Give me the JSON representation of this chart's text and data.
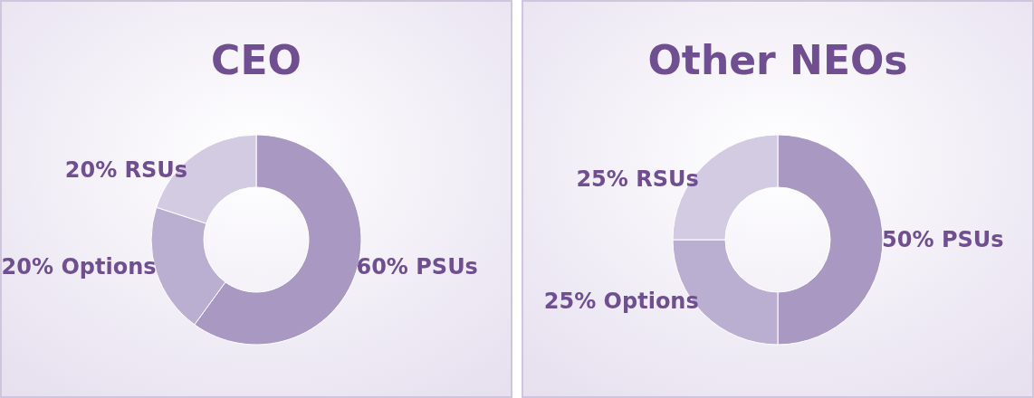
{
  "chart_data": [
    {
      "type": "donut",
      "title": "CEO",
      "categories": [
        "PSUs",
        "Options",
        "RSUs"
      ],
      "values": [
        60,
        20,
        20
      ],
      "value_labels": [
        "60%",
        "20%",
        "20%"
      ],
      "colors": [
        "#a898c2",
        "#bbafd1",
        "#d3cbe1"
      ]
    },
    {
      "type": "donut",
      "title": "Other NEOs",
      "categories": [
        "PSUs",
        "Options",
        "RSUs"
      ],
      "values": [
        50,
        25,
        25
      ],
      "value_labels": [
        "50%",
        "25%",
        "25%"
      ],
      "colors": [
        "#a898c2",
        "#bbafd1",
        "#d3cbe1"
      ]
    }
  ]
}
